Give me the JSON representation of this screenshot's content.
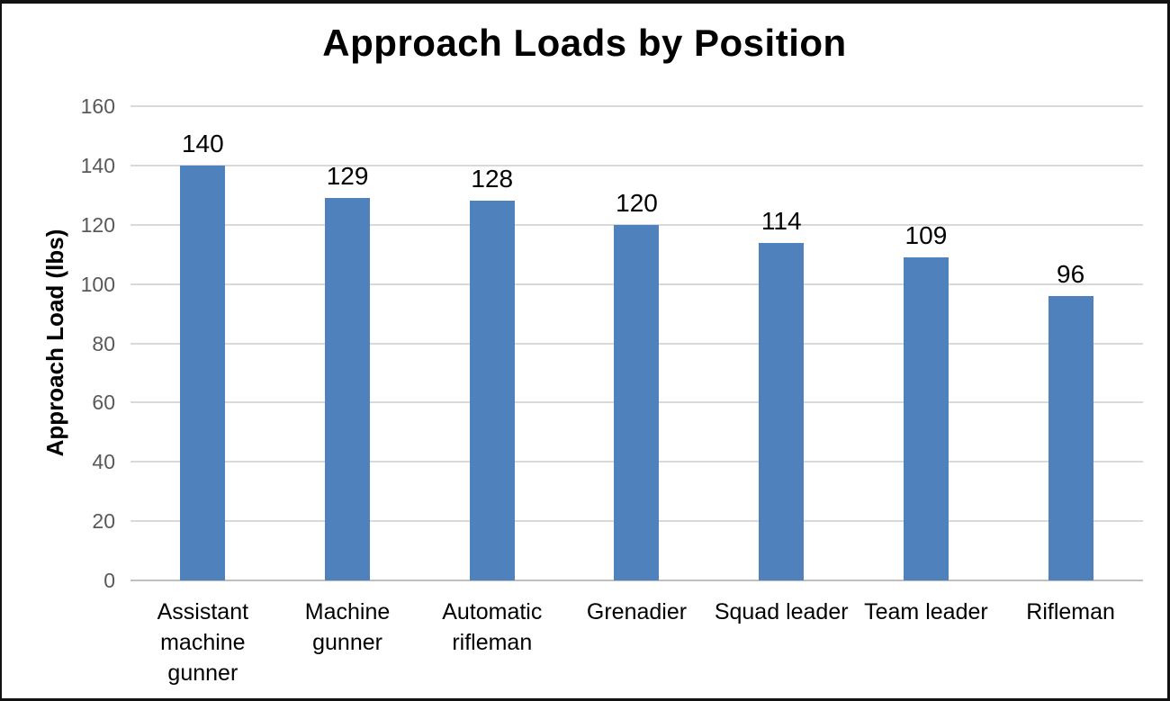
{
  "chart_data": {
    "type": "bar",
    "title": "Approach Loads by Position",
    "xlabel": "",
    "ylabel": "Approach Load (lbs)",
    "categories": [
      "Assistant machine gunner",
      "Machine gunner",
      "Automatic rifleman",
      "Grenadier",
      "Squad leader",
      "Team leader",
      "Rifleman"
    ],
    "values": [
      140,
      129,
      128,
      120,
      114,
      109,
      96
    ],
    "ylim": [
      0,
      160
    ],
    "yticks": [
      0,
      20,
      40,
      60,
      80,
      100,
      120,
      140,
      160
    ],
    "grid": true,
    "legend": "none",
    "data_labels": true,
    "colors": {
      "bar": "#4f81bd",
      "gridline": "#d9d9d9",
      "axis_line": "#bfbfbf",
      "tick_label": "#595959",
      "text": "#000000",
      "background": "#ffffff",
      "frame_border": "#121212"
    }
  }
}
